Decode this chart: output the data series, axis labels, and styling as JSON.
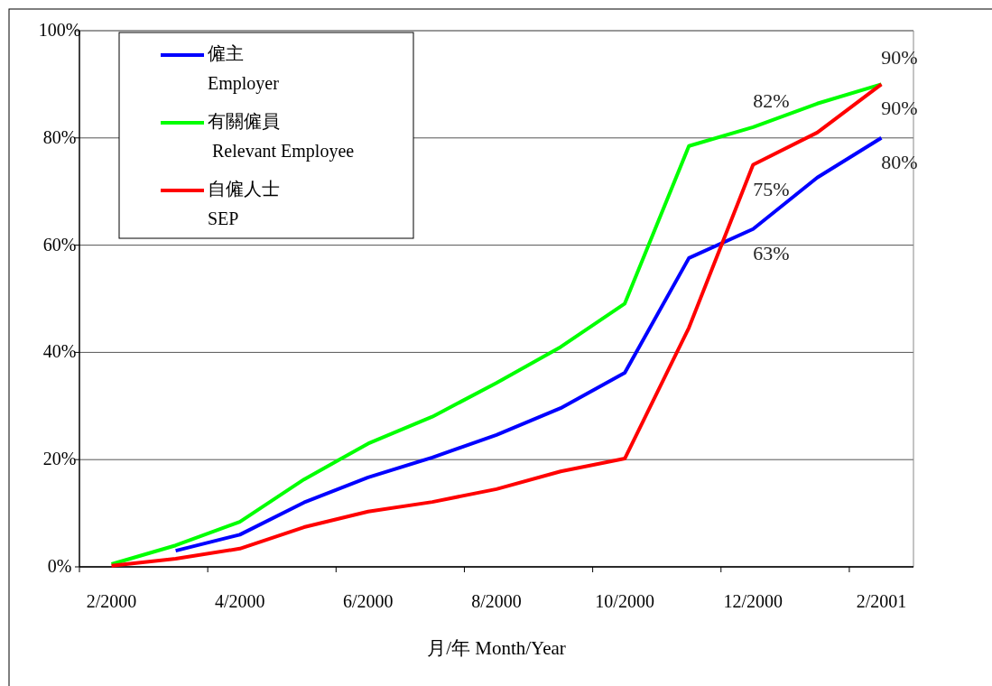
{
  "chart_data": {
    "type": "line",
    "xlabel": "月/年  Month/Year",
    "categories": [
      "2/2000",
      null,
      "4/2000",
      null,
      "6/2000",
      null,
      "8/2000",
      null,
      "10/2000",
      null,
      "12/2000",
      null,
      "2/2001"
    ],
    "series": [
      {
        "name": "僱主\nEmployer",
        "color": "#0000ff",
        "values": [
          null,
          3,
          6,
          12,
          16.7,
          20.4,
          24.6,
          29.6,
          36.2,
          57.6,
          63,
          72.6,
          80
        ],
        "value_labels": [
          null,
          null,
          null,
          null,
          null,
          null,
          null,
          null,
          null,
          null,
          "63%",
          null,
          "80%"
        ]
      },
      {
        "name": "有關僱員\n Relevant Employee",
        "color": "#00ff00",
        "values": [
          0.5,
          4,
          8.4,
          16.3,
          23,
          28,
          34.3,
          41,
          49.1,
          78.5,
          82,
          86.4,
          90
        ],
        "value_labels": [
          null,
          null,
          null,
          null,
          null,
          null,
          null,
          null,
          null,
          null,
          "82%",
          null,
          "90%"
        ]
      },
      {
        "name": "自僱人士\nSEP",
        "color": "#ff0000",
        "values": [
          0.2,
          1.5,
          3.4,
          7.4,
          10.3,
          12.1,
          14.5,
          17.8,
          20.2,
          44.6,
          75,
          81,
          90
        ],
        "value_labels": [
          null,
          null,
          null,
          null,
          null,
          null,
          null,
          null,
          null,
          null,
          "75%",
          null,
          "90%"
        ]
      }
    ],
    "ylim": [
      0,
      100
    ],
    "yticks": [
      {
        "value": 0,
        "label": "0%"
      },
      {
        "value": 20,
        "label": "20%"
      },
      {
        "value": 40,
        "label": "40%"
      },
      {
        "value": 60,
        "label": "60%"
      },
      {
        "value": 80,
        "label": "80%"
      },
      {
        "value": 100,
        "label": "100%"
      }
    ],
    "grid": "y",
    "legend": "top left",
    "marker": "none",
    "line_style": "solid"
  }
}
